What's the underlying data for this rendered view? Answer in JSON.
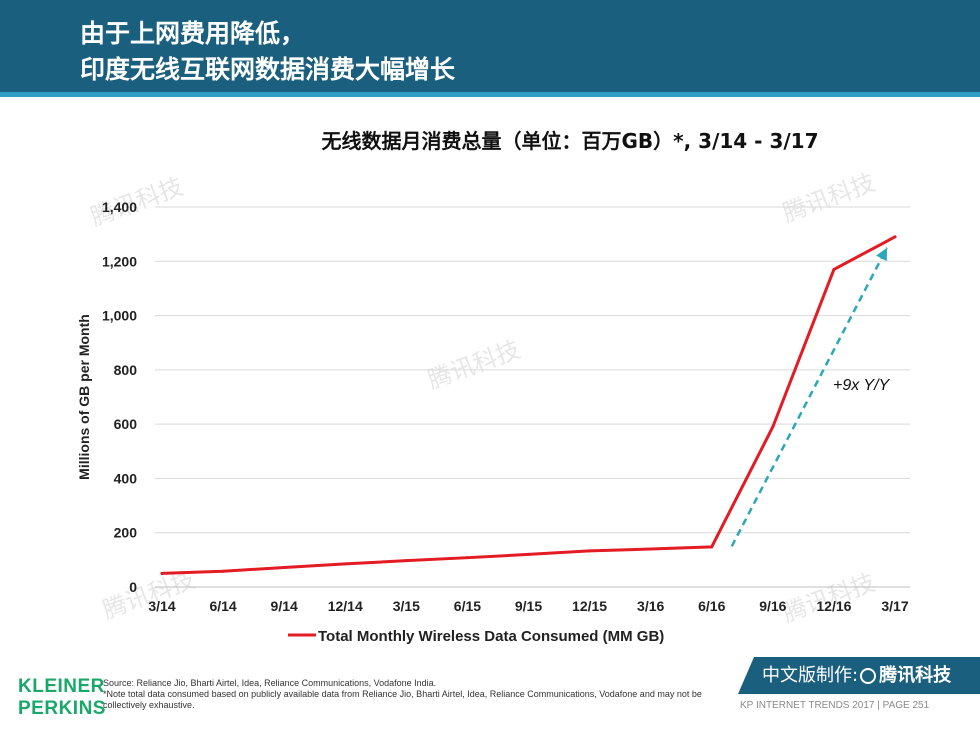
{
  "header": {
    "title_line1": "由于上网费用降低，",
    "title_line2": "印度无线互联网数据消费大幅增长",
    "background_color": "#1b5f7e",
    "stripe_color": "#2f9ec4"
  },
  "chart_data": {
    "type": "line",
    "title": "无线数据月消费总量（单位：百万GB）*, 3/14 - 3/17",
    "ylabel": "Millions of GB per Month",
    "xlabel": "",
    "categories": [
      "3/14",
      "6/14",
      "9/14",
      "12/14",
      "3/15",
      "6/15",
      "9/15",
      "12/15",
      "3/16",
      "6/16",
      "9/16",
      "12/16",
      "3/17"
    ],
    "y_tick_labels": [
      "0",
      "200",
      "400",
      "600",
      "800",
      "1,000",
      "1,200",
      "1,400"
    ],
    "ylim": [
      0,
      1400
    ],
    "grid": "horizontal",
    "legend_position": "bottom",
    "series": [
      {
        "name": "Total Monthly Wireless Data Consumed (MM GB)",
        "color": "#e31b23",
        "values": [
          50,
          58,
          72,
          85,
          97,
          108,
          120,
          133,
          140,
          148,
          590,
          1170,
          1290
        ]
      }
    ],
    "annotation": {
      "text": "+9x Y/Y",
      "arrow_color": "#2aa7b9",
      "arrow_from": {
        "x": "6/16",
        "y": 150
      },
      "arrow_to": {
        "x": "3/17",
        "y": 1250
      }
    }
  },
  "watermark": {
    "text": "腾讯科技"
  },
  "footer": {
    "logo_line1": "KLEINER",
    "logo_line2": "PERKINS",
    "logo_color": "#1aa86a",
    "source": "Source: Reliance Jio, Bharti Airtel, Idea, Reliance Communications, Vodafone India.",
    "note": "*Note total data consumed based on publicly available data from Reliance Jio, Bharti Airtel, Idea, Reliance Communications, Vodafone and may not be collectively exhaustive.",
    "badge_prefix": "中文版制作:",
    "badge_brand": "腾讯科技",
    "page_info": "KP INTERNET TRENDS 2017  |  PAGE 251"
  }
}
